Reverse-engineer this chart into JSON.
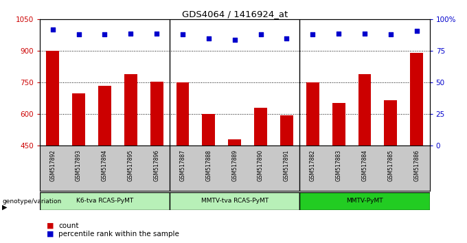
{
  "title": "GDS4064 / 1416924_at",
  "samples": [
    "GSM517892",
    "GSM517893",
    "GSM517894",
    "GSM517895",
    "GSM517896",
    "GSM517887",
    "GSM517888",
    "GSM517889",
    "GSM517890",
    "GSM517891",
    "GSM517882",
    "GSM517883",
    "GSM517884",
    "GSM517885",
    "GSM517886"
  ],
  "bar_values": [
    900,
    700,
    735,
    790,
    755,
    750,
    600,
    480,
    630,
    595,
    750,
    655,
    790,
    665,
    890
  ],
  "percentile_values": [
    92,
    88,
    88,
    89,
    89,
    88,
    85,
    84,
    88,
    85,
    88,
    89,
    89,
    88,
    91
  ],
  "ylim_left": [
    450,
    1050
  ],
  "ylim_right": [
    0,
    100
  ],
  "yticks_left": [
    450,
    600,
    750,
    900,
    1050
  ],
  "yticks_right": [
    0,
    25,
    50,
    75,
    100
  ],
  "bar_color": "#cc0000",
  "dot_color": "#0000cc",
  "groups": [
    {
      "label": "K6-tva RCAS-PyMT",
      "start": 0,
      "end": 5
    },
    {
      "label": "MMTV-tva RCAS-PyMT",
      "start": 5,
      "end": 10
    },
    {
      "label": "MMTV-PyMT",
      "start": 10,
      "end": 15
    }
  ],
  "group_colors": [
    "#b8f0b8",
    "#b8f0b8",
    "#22cc22"
  ],
  "xlabel_genotype": "genotype/variation",
  "legend_count_label": "count",
  "legend_percentile_label": "percentile rank within the sample",
  "background_color": "#ffffff",
  "sample_label_bg": "#c8c8c8",
  "group_dividers": [
    5,
    10
  ]
}
